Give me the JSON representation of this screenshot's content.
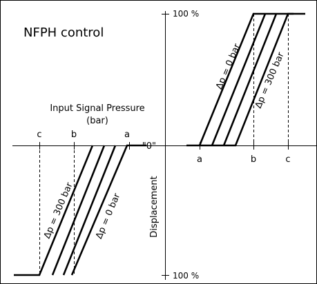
{
  "title": "NFPH control",
  "axes": {
    "input_label_line1": "Input Signal Pressure",
    "input_label_line2": "(bar)",
    "displacement_label": "Displacement",
    "top_label": "100 %",
    "bottom_label": "100 %",
    "zero_label": "\"0\""
  },
  "markers": {
    "left": [
      "c",
      "b",
      "a"
    ],
    "right": [
      "a",
      "b",
      "c"
    ]
  },
  "curves": {
    "right_low": "Δp = 0 bar",
    "right_high": "Δp = 300 bar",
    "left_high": "Δp = 300 bar",
    "left_low": "Δp = 0 bar"
  }
}
